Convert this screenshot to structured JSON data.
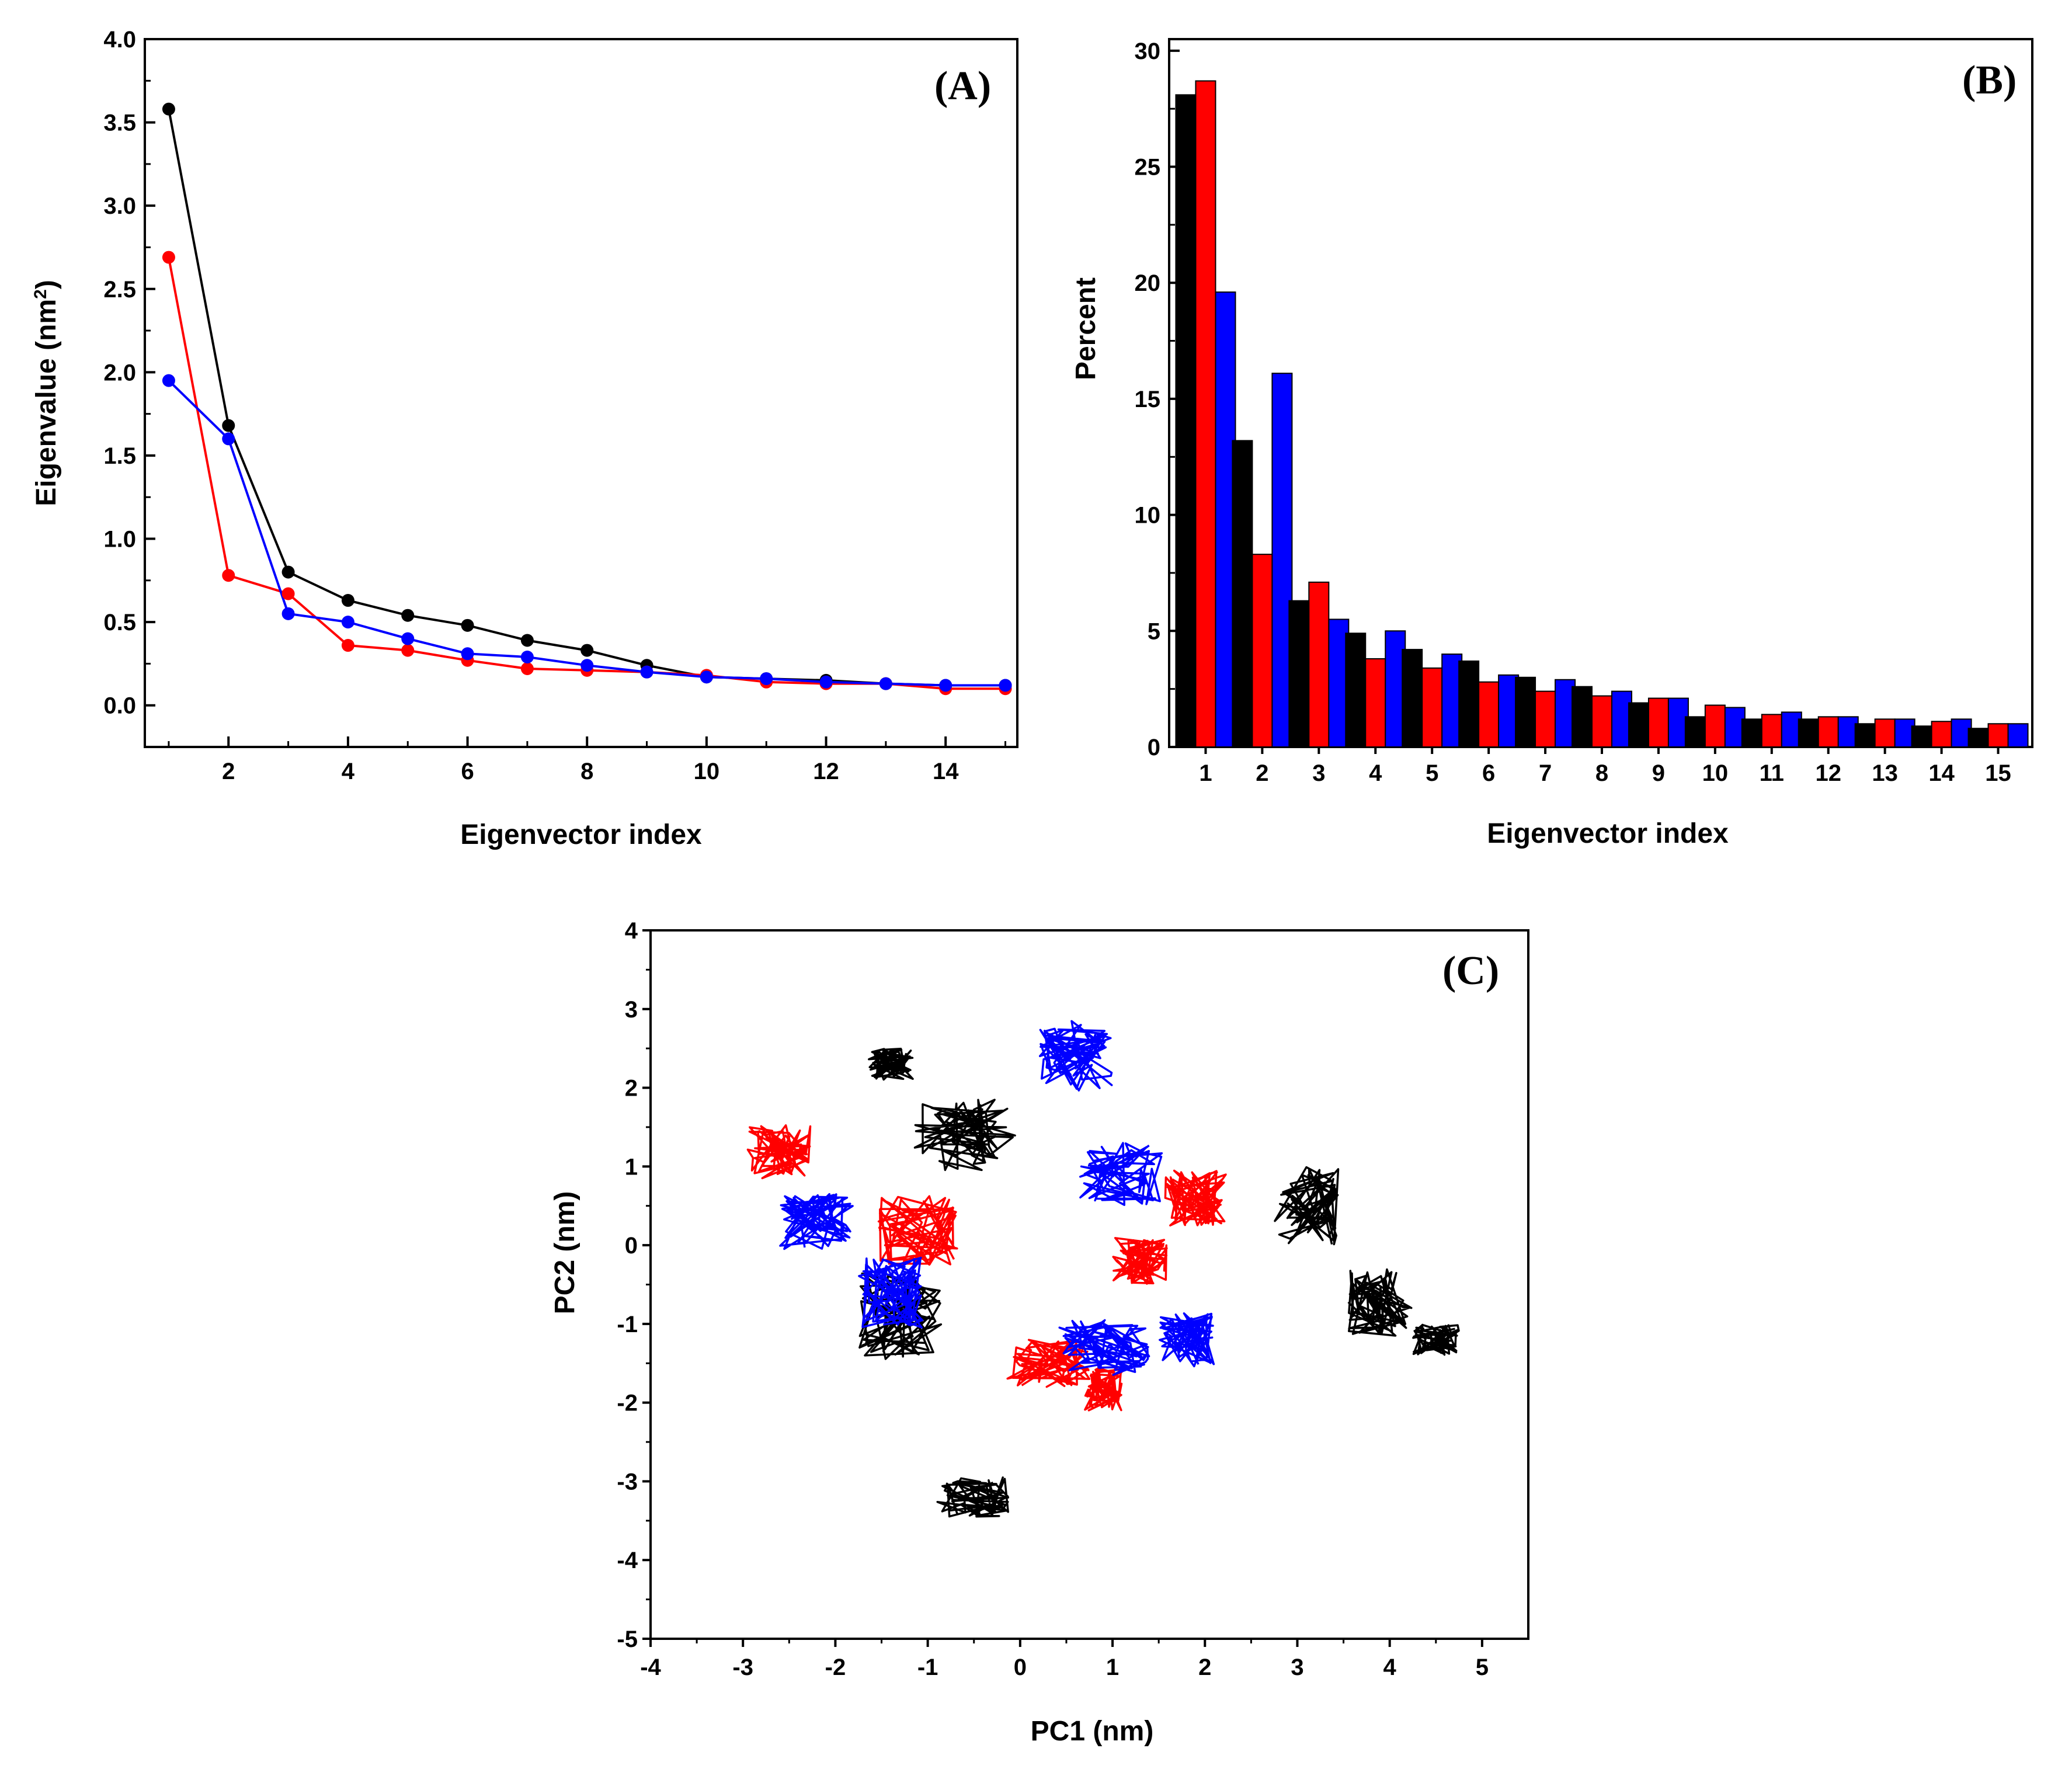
{
  "chart_data": [
    {
      "type": "line",
      "panel_label": "(A)",
      "xlabel": "Eigenvector index",
      "ylabel": "Eigenvalue (nm",
      "ylabel_sup": "2",
      "ylabel_close": ")",
      "xlim": [
        0.6,
        15.2
      ],
      "ylim": [
        -0.25,
        4.0
      ],
      "xticks": [
        2,
        4,
        6,
        8,
        10,
        12,
        14
      ],
      "yticks": [
        0.0,
        0.5,
        1.0,
        1.5,
        2.0,
        2.5,
        3.0,
        3.5,
        4.0
      ],
      "ytick_labels": [
        "0.0",
        "0.5",
        "1.0",
        "1.5",
        "2.0",
        "2.5",
        "3.0",
        "3.5",
        "4.0"
      ],
      "x": [
        1,
        2,
        3,
        4,
        5,
        6,
        7,
        8,
        9,
        10,
        11,
        12,
        13,
        14,
        15
      ],
      "series": [
        {
          "name": "black",
          "color": "#000000",
          "values": [
            3.58,
            1.68,
            0.8,
            0.63,
            0.54,
            0.48,
            0.39,
            0.33,
            0.24,
            0.17,
            0.16,
            0.15,
            0.13,
            0.12,
            0.12
          ]
        },
        {
          "name": "red",
          "color": "#ff0000",
          "values": [
            2.69,
            0.78,
            0.67,
            0.36,
            0.33,
            0.27,
            0.22,
            0.21,
            0.2,
            0.18,
            0.14,
            0.13,
            0.13,
            0.1,
            0.1
          ]
        },
        {
          "name": "blue",
          "color": "#0000ff",
          "values": [
            1.95,
            1.6,
            0.55,
            0.5,
            0.4,
            0.31,
            0.29,
            0.24,
            0.2,
            0.17,
            0.16,
            0.14,
            0.13,
            0.12,
            0.12
          ]
        }
      ]
    },
    {
      "type": "bar",
      "panel_label": "(B)",
      "xlabel": "Eigenvector index",
      "ylabel": "Percent",
      "ylim": [
        0,
        30.5
      ],
      "yticks": [
        0,
        5,
        10,
        15,
        20,
        25,
        30
      ],
      "categories": [
        "1",
        "2",
        "3",
        "4",
        "5",
        "6",
        "7",
        "8",
        "9",
        "10",
        "11",
        "12",
        "13",
        "14",
        "15"
      ],
      "series": [
        {
          "name": "black",
          "color": "#000000",
          "values": [
            28.1,
            13.2,
            6.3,
            4.9,
            4.2,
            3.7,
            3.0,
            2.6,
            1.9,
            1.3,
            1.2,
            1.2,
            1.0,
            0.9,
            0.8
          ]
        },
        {
          "name": "red",
          "color": "#ff0000",
          "values": [
            28.7,
            8.3,
            7.1,
            3.8,
            3.4,
            2.8,
            2.4,
            2.2,
            2.1,
            1.8,
            1.4,
            1.3,
            1.2,
            1.1,
            1.0
          ]
        },
        {
          "name": "blue",
          "color": "#0000ff",
          "values": [
            19.6,
            16.1,
            5.5,
            5.0,
            4.0,
            3.1,
            2.9,
            2.4,
            2.1,
            1.7,
            1.5,
            1.3,
            1.2,
            1.2,
            1.0
          ]
        }
      ]
    },
    {
      "type": "line",
      "subtype": "trajectory",
      "panel_label": "(C)",
      "xlabel": "PC1 (nm)",
      "ylabel": "PC2 (nm)",
      "xlim": [
        -4,
        5.5
      ],
      "ylim": [
        -5,
        4
      ],
      "xticks": [
        -4,
        -3,
        -2,
        -1,
        0,
        1,
        2,
        3,
        4,
        5
      ],
      "yticks": [
        -5,
        -4,
        -3,
        -2,
        -1,
        0,
        1,
        2,
        3,
        4
      ],
      "series": [
        {
          "name": "black",
          "color": "#000000",
          "clusters": [
            {
              "cx": -0.6,
              "cy": 1.4,
              "sx": 0.55,
              "sy": 0.45
            },
            {
              "cx": -1.4,
              "cy": 2.3,
              "sx": 0.25,
              "sy": 0.2
            },
            {
              "cx": -1.3,
              "cy": -0.9,
              "sx": 0.45,
              "sy": 0.55
            },
            {
              "cx": -0.5,
              "cy": -3.2,
              "sx": 0.4,
              "sy": 0.25
            },
            {
              "cx": 3.1,
              "cy": 0.5,
              "sx": 0.35,
              "sy": 0.5
            },
            {
              "cx": 3.9,
              "cy": -0.7,
              "sx": 0.35,
              "sy": 0.45
            },
            {
              "cx": 4.5,
              "cy": -1.2,
              "sx": 0.25,
              "sy": 0.2
            }
          ]
        },
        {
          "name": "red",
          "color": "#ff0000",
          "clusters": [
            {
              "cx": -2.6,
              "cy": 1.2,
              "sx": 0.35,
              "sy": 0.35
            },
            {
              "cx": -1.1,
              "cy": 0.2,
              "sx": 0.45,
              "sy": 0.45
            },
            {
              "cx": 0.3,
              "cy": -1.5,
              "sx": 0.45,
              "sy": 0.3
            },
            {
              "cx": 0.9,
              "cy": -1.8,
              "sx": 0.2,
              "sy": 0.3
            },
            {
              "cx": 1.9,
              "cy": 0.6,
              "sx": 0.35,
              "sy": 0.35
            },
            {
              "cx": 1.3,
              "cy": -0.2,
              "sx": 0.3,
              "sy": 0.3
            }
          ]
        },
        {
          "name": "blue",
          "color": "#0000ff",
          "clusters": [
            {
              "cx": 0.6,
              "cy": 2.4,
              "sx": 0.4,
              "sy": 0.45
            },
            {
              "cx": 1.1,
              "cy": 0.9,
              "sx": 0.45,
              "sy": 0.4
            },
            {
              "cx": -2.2,
              "cy": 0.3,
              "sx": 0.4,
              "sy": 0.35
            },
            {
              "cx": -1.4,
              "cy": -0.6,
              "sx": 0.35,
              "sy": 0.45
            },
            {
              "cx": 0.9,
              "cy": -1.3,
              "sx": 0.5,
              "sy": 0.35
            },
            {
              "cx": 1.8,
              "cy": -1.2,
              "sx": 0.3,
              "sy": 0.35
            }
          ]
        }
      ]
    }
  ]
}
